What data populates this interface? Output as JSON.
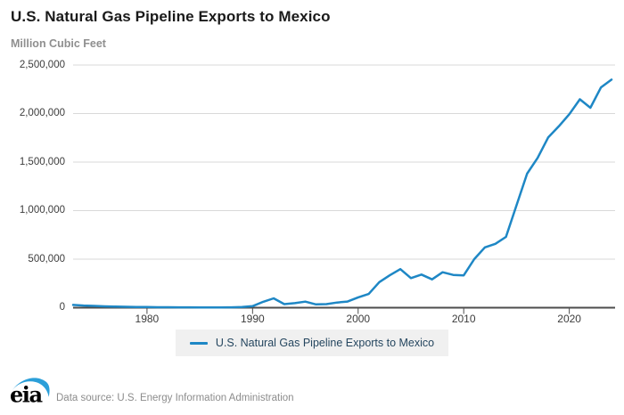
{
  "header": {
    "title": "U.S. Natural Gas Pipeline Exports to Mexico",
    "units": "Million Cubic Feet"
  },
  "chart_data": {
    "type": "line",
    "title": "U.S. Natural Gas Pipeline Exports to Mexico",
    "ylabel": "Million Cubic Feet",
    "xlabel": "",
    "ylim": [
      0,
      2500000
    ],
    "xlim": [
      1973,
      2024
    ],
    "grid": "horizontal",
    "legend_position": "bottom",
    "line_color": "#1e87c5",
    "x_ticks": [
      "1980",
      "1990",
      "2000",
      "2010",
      "2020"
    ],
    "y_tick_rows": [
      {
        "label": "2,500,000",
        "value": 2500000
      },
      {
        "label": "2,000,000",
        "value": 2000000
      },
      {
        "label": "1,500,000",
        "value": 1500000
      },
      {
        "label": "1,000,000",
        "value": 1000000
      },
      {
        "label": "500,000",
        "value": 500000
      },
      {
        "label": "0",
        "value": 0
      }
    ],
    "series": [
      {
        "name": "U.S. Natural Gas Pipeline Exports to Mexico",
        "x": [
          1973,
          1974,
          1975,
          1976,
          1977,
          1978,
          1979,
          1980,
          1981,
          1982,
          1983,
          1984,
          1985,
          1986,
          1987,
          1988,
          1989,
          1990,
          1991,
          1992,
          1993,
          1994,
          1995,
          1996,
          1997,
          1998,
          1999,
          2000,
          2001,
          2002,
          2003,
          2004,
          2005,
          2006,
          2007,
          2008,
          2009,
          2010,
          2011,
          2012,
          2013,
          2014,
          2015,
          2016,
          2017,
          2018,
          2019,
          2020,
          2021,
          2022,
          2023,
          2024
        ],
        "values": [
          28000,
          22000,
          18000,
          14000,
          11000,
          9000,
          7000,
          6000,
          5000,
          5000,
          4000,
          3500,
          3000,
          3000,
          3000,
          3500,
          6000,
          16000,
          61000,
          96000,
          37000,
          47000,
          62000,
          34000,
          37000,
          53000,
          63000,
          106000,
          141000,
          263000,
          334000,
          397000,
          305000,
          341000,
          292000,
          365000,
          338000,
          333000,
          500000,
          621000,
          658000,
          729000,
          1054000,
          1381000,
          1543000,
          1753000,
          1868000,
          1993000,
          2147000,
          2060000,
          2270000,
          2350000
        ]
      }
    ]
  },
  "legend": {
    "label": "U.S. Natural Gas Pipeline Exports to Mexico"
  },
  "footer": {
    "logo": "eia",
    "source": "Data source: U.S. Energy Information Administration"
  },
  "colors": {
    "line": "#1e87c5",
    "gridline": "#d9d9d9",
    "axis": "#4d4d4d",
    "title": "#1a1a1a",
    "subtitle": "#8f8f8f",
    "tick_text": "#3c3c3c",
    "legend_bg": "#f0f0f0",
    "legend_text": "#25465f",
    "footer_text": "#8c8c8c",
    "logo_swoosh": "#2b9fd9"
  }
}
